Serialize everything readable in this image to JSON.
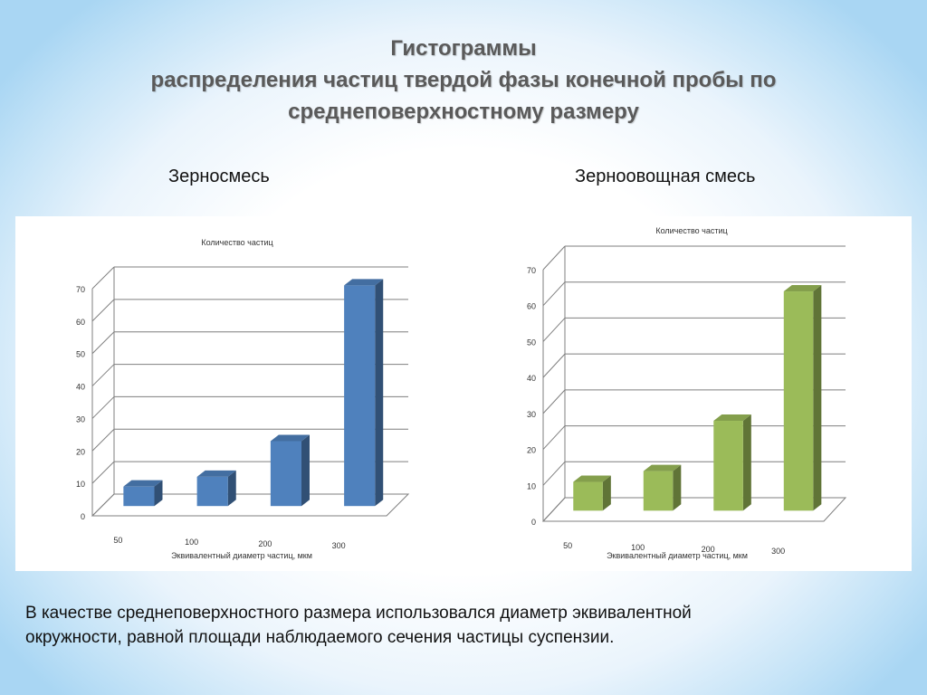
{
  "slide": {
    "title_line1": "Гистограммы",
    "title_line2": "распределения частиц твердой фазы конечной пробы по",
    "title_line3": "среднеповерхностному размеру",
    "subtitle_left": "Зерносмесь",
    "subtitle_right": "Зерноовощная смесь",
    "footer_line1": "В качестве среднеповерхностного размера использовался диаметр эквивалентной",
    "footer_line2": "окружности, равной площади наблюдаемого сечения частицы суспензии."
  },
  "chart_data": [
    {
      "type": "bar",
      "title": "Количество частиц",
      "xlabel": "Эквивалентный диаметр частиц, мкм",
      "ylabel": "",
      "categories": [
        "50",
        "100",
        "200",
        "300"
      ],
      "values": [
        6,
        9,
        20,
        68
      ],
      "ylim": [
        0,
        70
      ],
      "yticks": [
        "0",
        "10",
        "20",
        "30",
        "40",
        "50",
        "60",
        "70"
      ],
      "grid": true,
      "style": "3d-column",
      "color": "#4f81bd"
    },
    {
      "type": "bar",
      "title": "Количество частиц",
      "xlabel": "Эквивалентный диаметр частиц, мкм",
      "ylabel": "",
      "categories": [
        "50",
        "100",
        "200",
        "300"
      ],
      "values": [
        8,
        11,
        25,
        61
      ],
      "ylim": [
        0,
        70
      ],
      "yticks": [
        "0",
        "10",
        "20",
        "30",
        "40",
        "50",
        "60",
        "70"
      ],
      "grid": true,
      "style": "3d-column",
      "color": "#9bbb59"
    }
  ]
}
